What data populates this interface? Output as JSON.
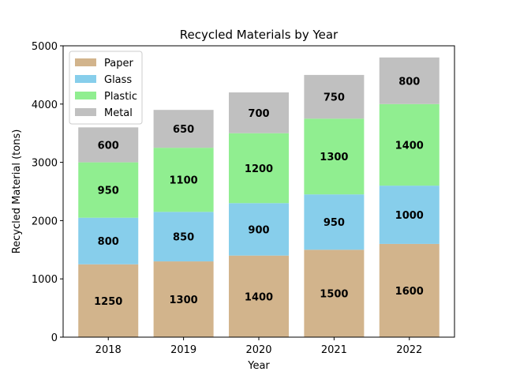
{
  "chart_data": {
    "type": "bar",
    "stacked": true,
    "title": "Recycled Materials by Year",
    "xlabel": "Year",
    "ylabel": "Recycled Material (tons)",
    "categories": [
      "2018",
      "2019",
      "2020",
      "2021",
      "2022"
    ],
    "ylim": [
      0,
      5000
    ],
    "yticks": [
      0,
      1000,
      2000,
      3000,
      4000,
      5000
    ],
    "grid": false,
    "legend_position": "top-left",
    "series": [
      {
        "name": "Paper",
        "color": "#D2B48C",
        "values": [
          1250,
          1300,
          1400,
          1500,
          1600
        ]
      },
      {
        "name": "Glass",
        "color": "#87CEEB",
        "values": [
          800,
          850,
          900,
          950,
          1000
        ]
      },
      {
        "name": "Plastic",
        "color": "#90EE90",
        "values": [
          950,
          1100,
          1200,
          1300,
          1400
        ]
      },
      {
        "name": "Metal",
        "color": "#C0C0C0",
        "values": [
          600,
          650,
          700,
          750,
          800
        ]
      }
    ]
  }
}
